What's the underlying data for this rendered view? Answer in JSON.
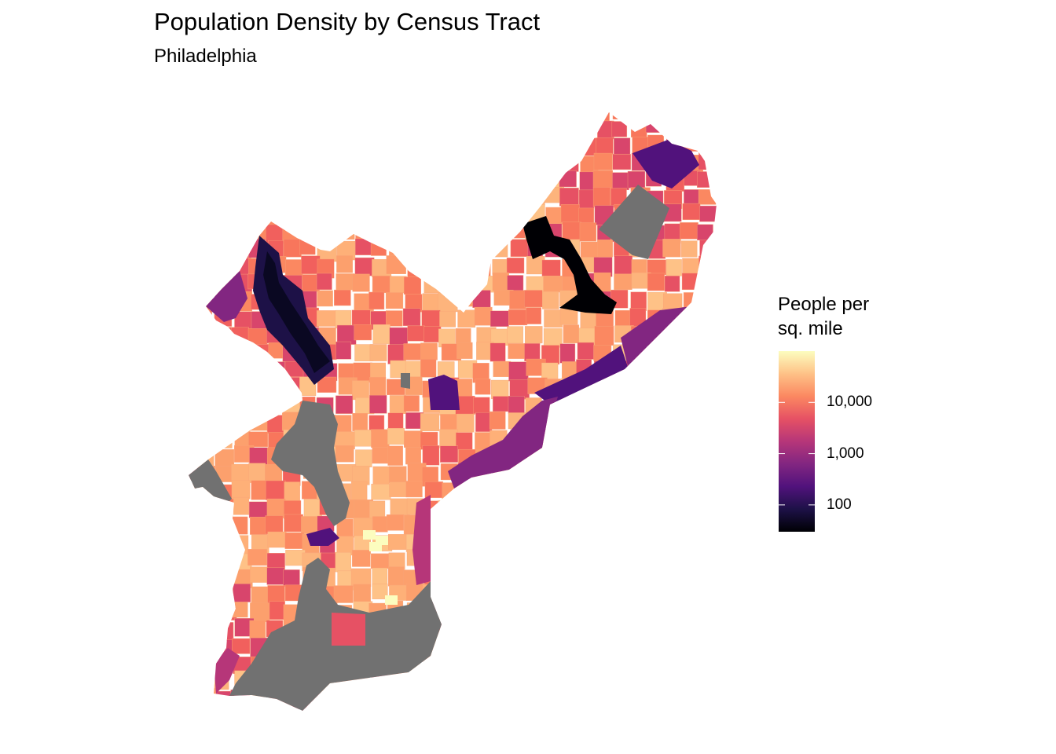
{
  "title": "Population Density by Census Tract",
  "subtitle": "Philadelphia",
  "legend": {
    "title_line1": "People per",
    "title_line2": "sq. mile",
    "ticks": [
      "10,000",
      "1,000",
      "100"
    ],
    "tick_values": [
      10000,
      1000,
      100
    ],
    "range": [
      30,
      100000
    ],
    "scale": "log",
    "palette": "magma",
    "na_color": "#717171",
    "palette_stops": [
      "#000004",
      "#1d1147",
      "#51127c",
      "#822681",
      "#b63679",
      "#e65164",
      "#fb8861",
      "#fec287",
      "#fcfdbf"
    ]
  }
}
